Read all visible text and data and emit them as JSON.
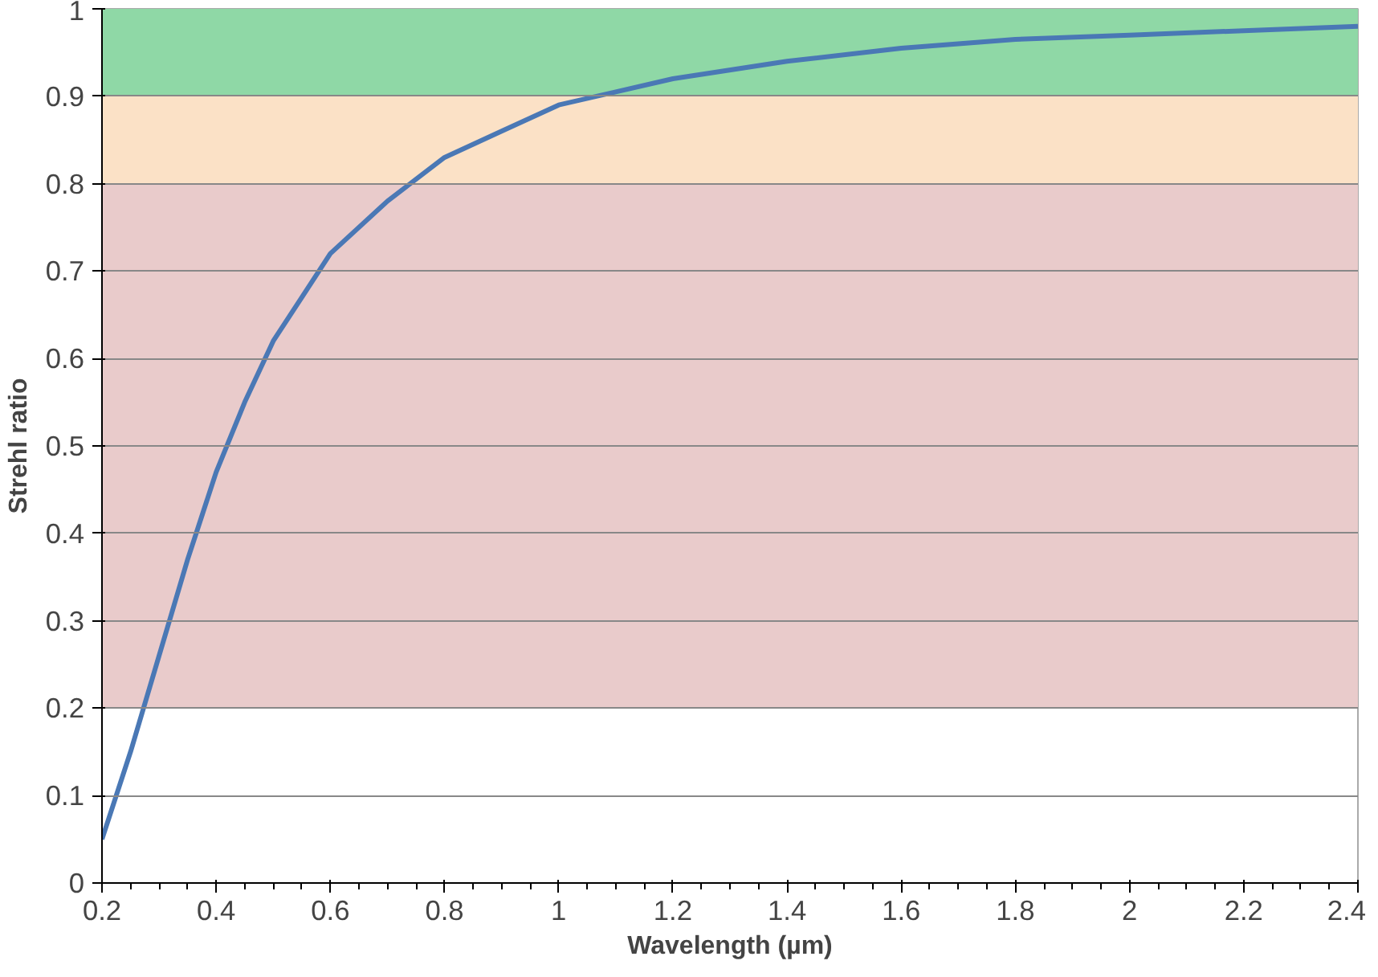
{
  "chart_data": {
    "type": "line",
    "xlabel": "Wavelength (µm)",
    "ylabel": "Strehl ratio",
    "x": [
      0.2,
      0.25,
      0.3,
      0.35,
      0.4,
      0.45,
      0.5,
      0.55,
      0.6,
      0.7,
      0.8,
      0.9,
      1.0,
      1.1,
      1.2,
      1.4,
      1.6,
      1.8,
      2.0,
      2.2,
      2.4
    ],
    "series": [
      {
        "color": "#4a78b5",
        "values": [
          0.05,
          0.15,
          0.26,
          0.37,
          0.47,
          0.55,
          0.62,
          0.67,
          0.72,
          0.78,
          0.83,
          0.86,
          0.89,
          0.905,
          0.92,
          0.94,
          0.955,
          0.965,
          0.97,
          0.975,
          0.98
        ]
      }
    ],
    "xlim": [
      0.2,
      2.4
    ],
    "ylim": [
      0,
      1
    ],
    "xticks": [
      0.2,
      0.4,
      0.6,
      0.8,
      1,
      1.2,
      1.4,
      1.6,
      1.8,
      2,
      2.2,
      2.4
    ],
    "yticks": [
      0,
      0.1,
      0.2,
      0.3,
      0.4,
      0.5,
      0.6,
      0.7,
      0.8,
      0.9,
      1
    ],
    "bands": [
      {
        "axis": "y",
        "from": 0.9,
        "to": 1,
        "color": "#8fd8a6"
      },
      {
        "axis": "y",
        "from": 0.8,
        "to": 0.9,
        "color": "#fbe1c6"
      },
      {
        "axis": "y",
        "from": 0.2,
        "to": 0.8,
        "color": "#e9cbcb"
      }
    ],
    "grid": "y",
    "marker": "none",
    "line_style": "solid"
  }
}
